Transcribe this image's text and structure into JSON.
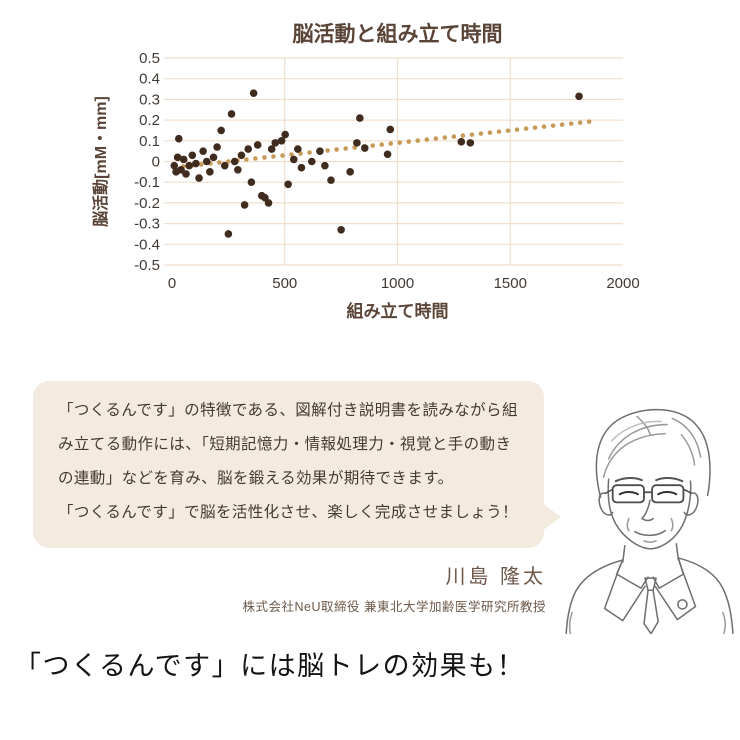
{
  "chart_data": {
    "type": "scatter",
    "title": "脳活動と組み立て時間",
    "xlabel": "組み立て時間",
    "ylabel": "脳活動[mM・mm]",
    "xlim": [
      0,
      2000
    ],
    "ylim": [
      -0.5,
      0.5
    ],
    "xticks": [
      0,
      500,
      1000,
      1500,
      2000
    ],
    "yticks": [
      0.5,
      0.4,
      0.3,
      0.2,
      0.1,
      0,
      -0.1,
      -0.2,
      -0.3,
      -0.4,
      -0.5
    ],
    "grid": true,
    "legend": "none",
    "colors": {
      "title": "#5a4437",
      "axis_label": "#5a4437",
      "ticks": "#403a35",
      "grid": "#f0dfcd",
      "scatter": "#402c1e",
      "trend": "#c79a58"
    },
    "series": [
      {
        "name": "observations",
        "style": "dots",
        "points": [
          [
            10,
            -0.02
          ],
          [
            18,
            -0.05
          ],
          [
            25,
            0.02
          ],
          [
            30,
            0.11
          ],
          [
            40,
            -0.04
          ],
          [
            52,
            0.01
          ],
          [
            62,
            -0.06
          ],
          [
            76,
            -0.02
          ],
          [
            90,
            0.03
          ],
          [
            106,
            -0.01
          ],
          [
            120,
            -0.08
          ],
          [
            138,
            0.05
          ],
          [
            154,
            0.0
          ],
          [
            168,
            -0.05
          ],
          [
            184,
            0.02
          ],
          [
            200,
            0.07
          ],
          [
            218,
            0.15
          ],
          [
            234,
            -0.02
          ],
          [
            250,
            -0.35
          ],
          [
            264,
            0.23
          ],
          [
            278,
            0.0
          ],
          [
            292,
            -0.04
          ],
          [
            308,
            0.03
          ],
          [
            322,
            -0.21
          ],
          [
            338,
            0.06
          ],
          [
            352,
            -0.1
          ],
          [
            362,
            0.33
          ],
          [
            380,
            0.08
          ],
          [
            398,
            -0.165
          ],
          [
            412,
            -0.175
          ],
          [
            428,
            -0.2
          ],
          [
            442,
            0.06
          ],
          [
            458,
            0.09
          ],
          [
            486,
            0.1
          ],
          [
            502,
            0.13
          ],
          [
            515,
            -0.11
          ],
          [
            540,
            0.01
          ],
          [
            558,
            0.06
          ],
          [
            574,
            -0.03
          ],
          [
            620,
            0.0
          ],
          [
            656,
            0.05
          ],
          [
            678,
            -0.02
          ],
          [
            705,
            -0.09
          ],
          [
            750,
            -0.33
          ],
          [
            790,
            -0.05
          ],
          [
            820,
            0.09
          ],
          [
            833,
            0.21
          ],
          [
            855,
            0.065
          ],
          [
            956,
            0.035
          ],
          [
            968,
            0.155
          ],
          [
            1283,
            0.095
          ],
          [
            1323,
            0.09
          ],
          [
            1805,
            0.315
          ]
        ]
      },
      {
        "name": "trend-line-dotted",
        "style": "dotted",
        "x_start": 0,
        "x_end": 1880,
        "y_start": -0.03,
        "y_end": 0.196
      }
    ]
  },
  "bubble": {
    "lines": [
      "「つくるんです」の特徴である、図解付き説明書を読みながら組",
      "み立てる動作には、「短期記憶力・情報処理力・視覚と手の動き",
      "の連動」などを育み、脳を鍛える効果が期待できます。",
      "「つくるんです」で脳を活性化させ、楽しく完成させましょう！"
    ]
  },
  "credit": {
    "name": "川島 隆太",
    "affiliation": "株式会社NeU取締役 兼東北大学加齢医学研究所教授"
  },
  "footer": {
    "headline": "「つくるんです」には脳トレの効果も！"
  }
}
